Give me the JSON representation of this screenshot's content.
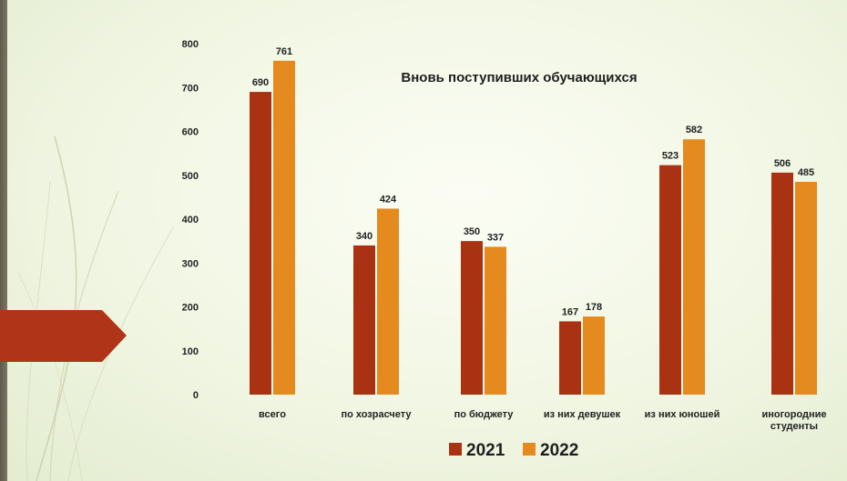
{
  "colors": {
    "series_2021": "#a83212",
    "series_2022": "#e58a1e",
    "arrow": "#b03418"
  },
  "chart_data": {
    "type": "bar",
    "title": "Вновь поступивших обучающихся",
    "categories": [
      "всего",
      "по хозрасчету",
      "по бюджету",
      "из них девушек",
      "из них юношей",
      "иногородние студенты"
    ],
    "series": [
      {
        "name": "2021",
        "values": [
          690,
          340,
          350,
          167,
          523,
          506
        ]
      },
      {
        "name": "2022",
        "values": [
          761,
          424,
          337,
          178,
          582,
          485
        ]
      }
    ],
    "yticks": [
      "0",
      "100",
      "200",
      "300",
      "400",
      "500",
      "600",
      "700",
      "800"
    ],
    "ylim": [
      0,
      800
    ],
    "grid": false,
    "legend_position": "bottom"
  }
}
